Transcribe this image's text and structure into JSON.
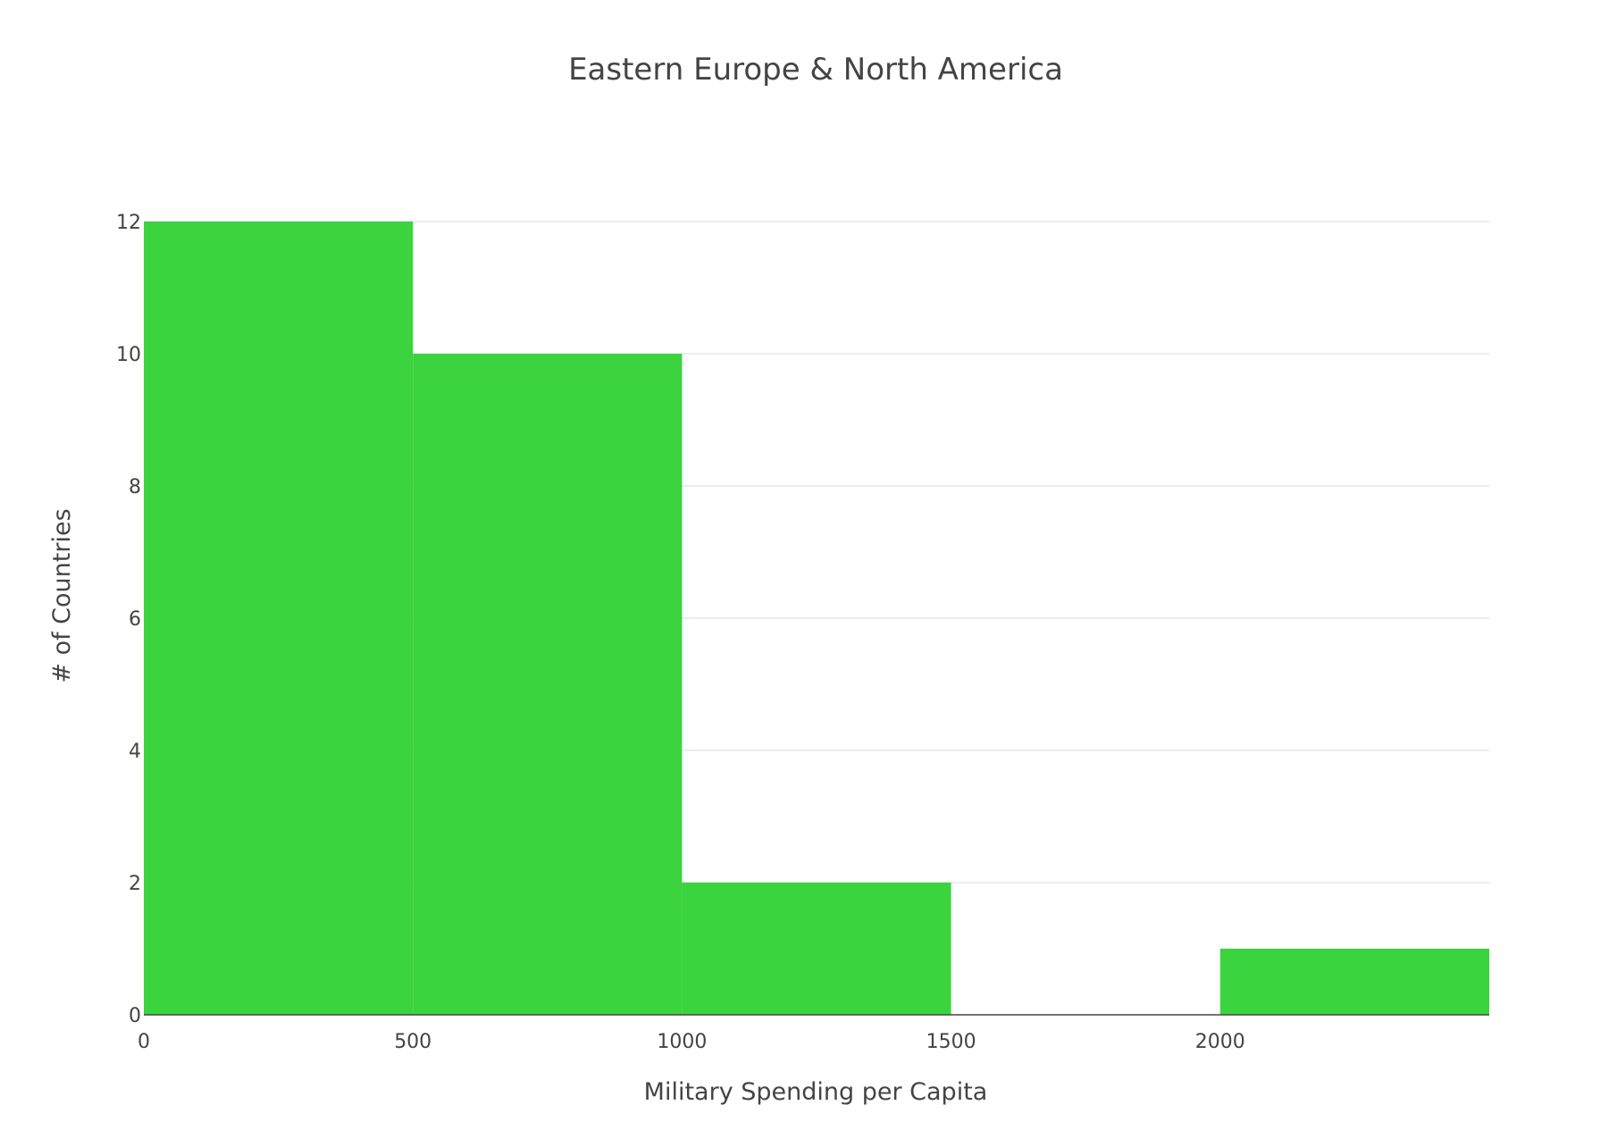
{
  "chart_data": {
    "type": "bar",
    "title": "Eastern Europe & North America",
    "xlabel": "Military Spending per Capita",
    "ylabel": "# of Countries",
    "bins": [
      {
        "start": 0,
        "end": 500,
        "count": 12
      },
      {
        "start": 500,
        "end": 1000,
        "count": 10
      },
      {
        "start": 1000,
        "end": 1500,
        "count": 2
      },
      {
        "start": 1500,
        "end": 2000,
        "count": 0
      },
      {
        "start": 2000,
        "end": 2500,
        "count": 1
      }
    ],
    "xlim": [
      0,
      2500
    ],
    "ylim": [
      0,
      12
    ],
    "x_ticks": [
      0,
      500,
      1000,
      1500,
      2000
    ],
    "x_tick_labels": [
      "0",
      "500",
      "1000",
      "1500",
      "2000"
    ],
    "y_ticks": [
      0,
      2,
      4,
      6,
      8,
      10,
      12
    ],
    "y_tick_labels": [
      "0",
      "2",
      "4",
      "6",
      "8",
      "10",
      "12"
    ],
    "grid": true,
    "legend": false,
    "colors": {
      "bar": "#3bd43e",
      "grid": "#e6e6e6",
      "axis_line": "#444444",
      "text": "#444444"
    }
  }
}
